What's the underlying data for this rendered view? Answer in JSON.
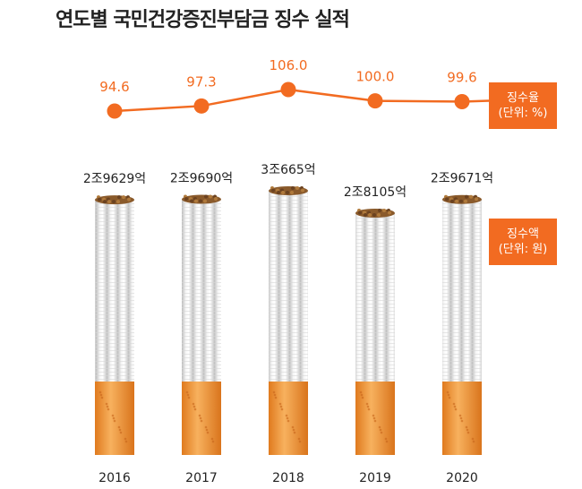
{
  "title": "연도별 국민건강증진부담금 징수 실적",
  "legend": {
    "rate_label": "징수율",
    "rate_unit": "(단위: %)",
    "amount_label": "징수액",
    "amount_unit": "(단위: 원)"
  },
  "colors": {
    "accent": "#f26b21",
    "filter": "#f3a24e",
    "paper": "#e9e9e9",
    "text": "#222222"
  },
  "chart_data": {
    "type": "bar",
    "categories": [
      "2016",
      "2017",
      "2018",
      "2019",
      "2020"
    ],
    "series": [
      {
        "name": "징수액",
        "values": [
          2.9629,
          2.969,
          3.0665,
          2.8105,
          2.9671
        ],
        "labels": [
          "2조9629억",
          "2조9690억",
          "3조665억",
          "2조8105억",
          "2조9671억"
        ]
      },
      {
        "name": "징수율",
        "type": "line",
        "values": [
          94.6,
          97.3,
          106.0,
          100.0,
          99.6
        ],
        "labels": [
          "94.6",
          "97.3",
          "106.0",
          "100.0",
          "99.6"
        ]
      }
    ],
    "bar_style": "cigarette",
    "ylim_amount": [
      0,
      3.0665
    ],
    "ylim_rate": [
      94.6,
      106.0
    ],
    "grid": false
  }
}
